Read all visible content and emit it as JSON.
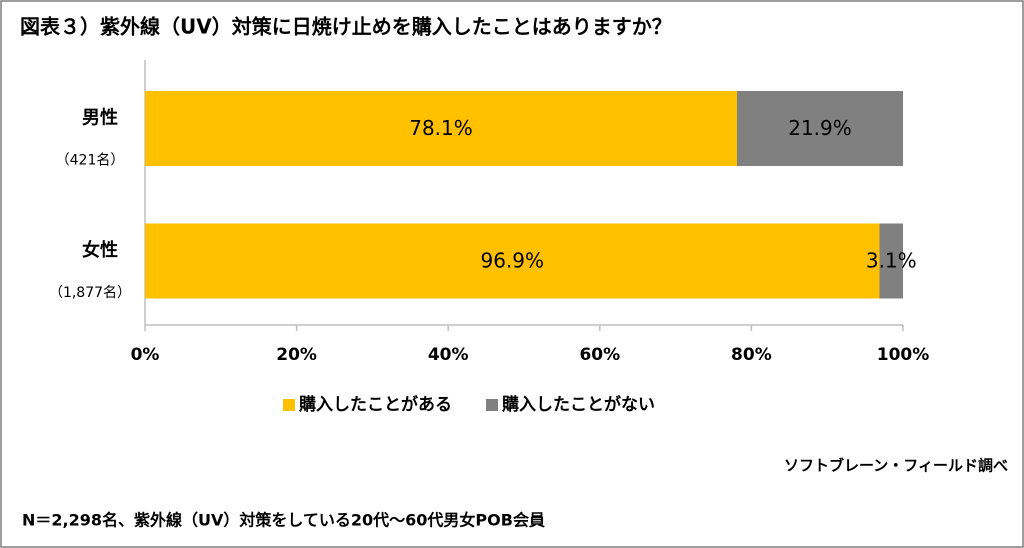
{
  "chart_data": {
    "type": "stacked-bar-horizontal",
    "title": "図表３）紫外線（UV）対策に日焼け止めを購入したことはありますか？",
    "categories": [
      "男性",
      "女性"
    ],
    "category_sublabels": [
      "（421名）",
      "（1,877名）"
    ],
    "series": [
      {
        "name": "購入したことがある",
        "color": "#ffc000",
        "values": [
          78.1,
          96.9
        ],
        "value_labels": [
          "78.1%",
          "96.9%"
        ]
      },
      {
        "name": "購入したことがない",
        "color": "#808080",
        "values": [
          21.9,
          3.1
        ],
        "value_labels": [
          "21.9%",
          "3.1%"
        ]
      }
    ],
    "xlim": [
      0,
      100
    ],
    "xticks": [
      {
        "value": 0,
        "label": "0%"
      },
      {
        "value": 20,
        "label": "20%"
      },
      {
        "value": 40,
        "label": "40%"
      },
      {
        "value": 60,
        "label": "60%"
      },
      {
        "value": 80,
        "label": "80%"
      },
      {
        "value": 100,
        "label": "100%"
      }
    ],
    "legend": "bottom",
    "source": "ソフトブレーン・フィールド調べ",
    "note": "N＝2,298名、紫外線（UV）対策をしている20代～60代男女POB会員"
  }
}
